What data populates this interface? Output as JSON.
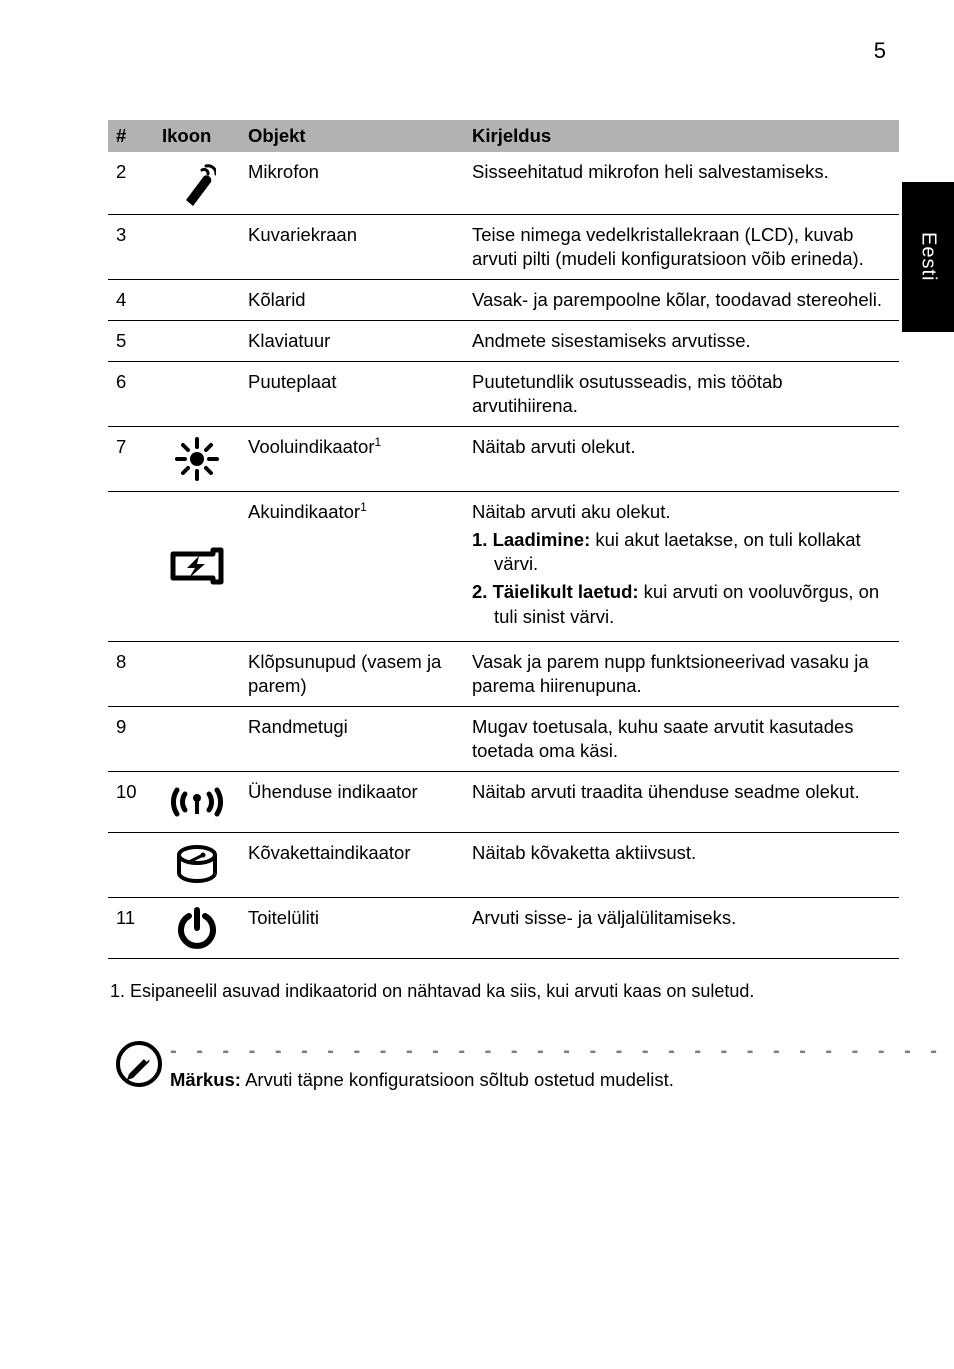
{
  "page_number": "5",
  "side_tab": "Eesti",
  "headers": {
    "num": "#",
    "icon": "Ikoon",
    "object": "Objekt",
    "desc": "Kirjeldus"
  },
  "rows": [
    {
      "num": "2",
      "icon": "mic",
      "object": "Mikrofon",
      "desc": "Sisseehitatud mikrofon heli salvestamiseks."
    },
    {
      "num": "3",
      "icon": "",
      "object": "Kuvariekraan",
      "desc": "Teise nimega vedelkristallekraan (LCD), kuvab arvuti pilti (mudeli konfiguratsioon võib erineda)."
    },
    {
      "num": "4",
      "icon": "",
      "object": "Kõlarid",
      "desc": "Vasak- ja parempoolne kõlar, toodavad stereoheli."
    },
    {
      "num": "5",
      "icon": "",
      "object": "Klaviatuur",
      "desc": "Andmete sisestamiseks arvutisse."
    },
    {
      "num": "6",
      "icon": "",
      "object": "Puuteplaat",
      "desc": "Puutetundlik osutusseadis, mis töötab arvutihiirena."
    },
    {
      "num": "7",
      "icon": "sun",
      "object_html": "Vooluindikaator",
      "sup": "1",
      "desc": "Näitab arvuti olekut."
    },
    {
      "num": "",
      "icon": "battery",
      "object_html": "Akuindikaator",
      "sup": "1",
      "multi": [
        "Näitab arvuti aku olekut.",
        {
          "lead": "1. Laadimine:",
          "rest": " kui akut laetakse, on tuli kollakat värvi."
        },
        {
          "lead": "2. Täielikult laetud:",
          "rest": " kui arvuti on vooluvõrgus, on tuli sinist värvi."
        }
      ]
    },
    {
      "num": "8",
      "icon": "",
      "object": "Klõpsunupud (vasem ja parem)",
      "desc": "Vasak ja parem nupp funktsioneerivad vasaku ja parema hiirenupuna."
    },
    {
      "num": "9",
      "icon": "",
      "object": "Randmetugi",
      "desc": "Mugav toetusala, kuhu saate arvutit kasutades toetada oma käsi."
    },
    {
      "num": "10",
      "icon": "wifi",
      "object": "Ühenduse indikaator",
      "desc": "Näitab arvuti traadita ühenduse seadme olekut."
    },
    {
      "num": "",
      "icon": "hdd",
      "object": "Kõvakettaindikaator",
      "desc": "Näitab kõvaketta aktiivsust."
    },
    {
      "num": "11",
      "icon": "power",
      "object": "Toitelüliti",
      "desc": "Arvuti sisse- ja väljalülitamiseks."
    }
  ],
  "footnote": "1. Esipaneelil asuvad indikaatorid on nähtavad ka siis, kui arvuti kaas on suletud.",
  "note_label": "Märkus:",
  "note_text": " Arvuti täpne konfiguratsioon sõltub ostetud mudelist.",
  "colors": {
    "header_bg": "#b2b2b2",
    "dash": "#7e7e7e"
  }
}
